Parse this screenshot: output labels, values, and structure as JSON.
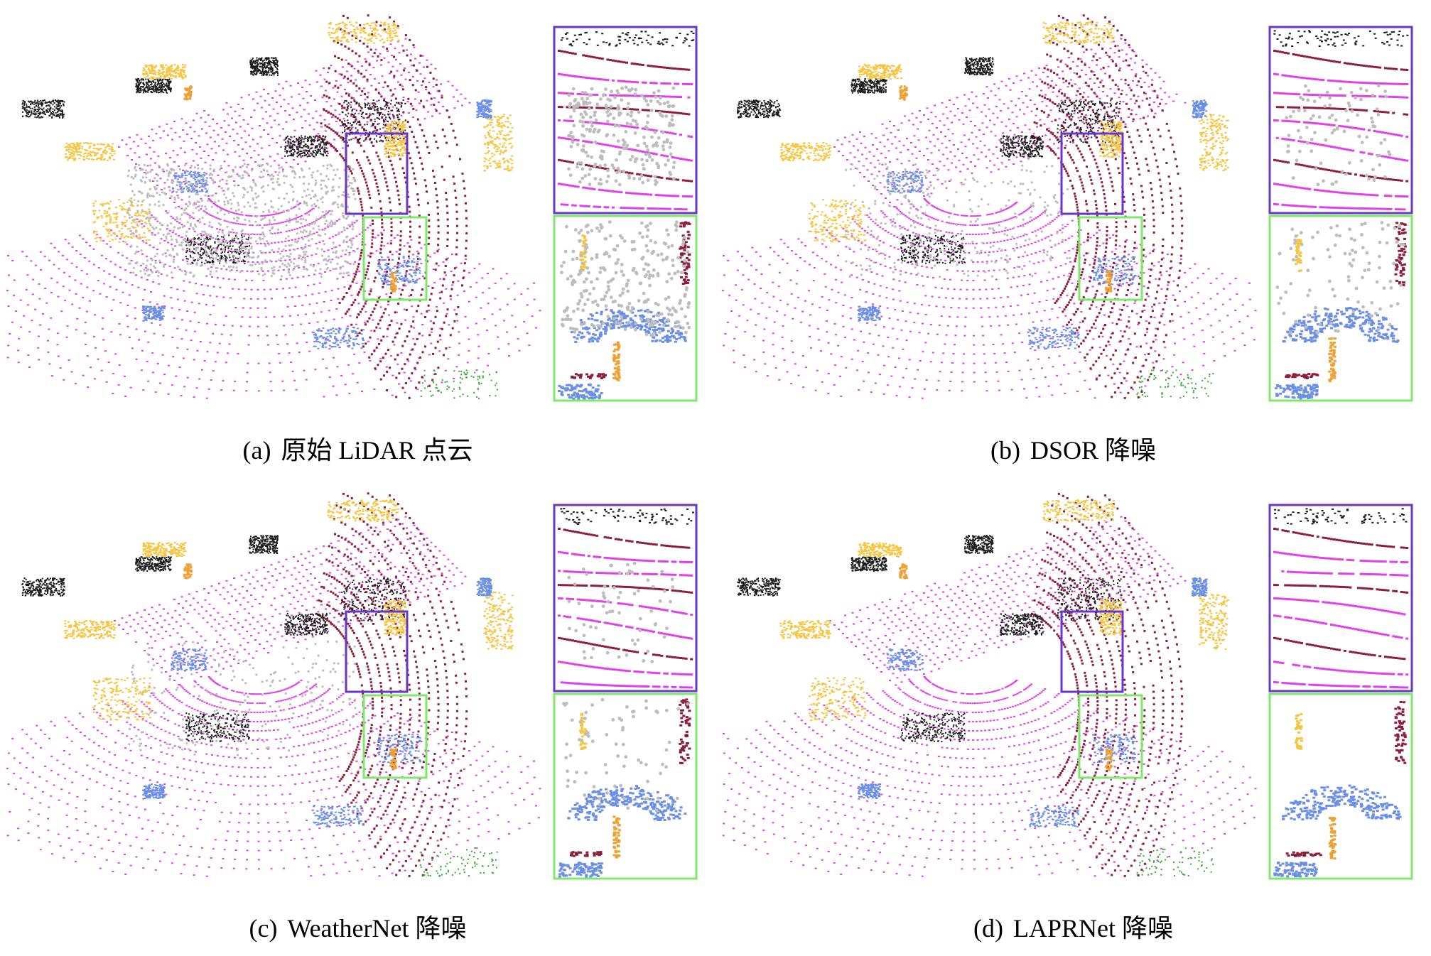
{
  "figure": {
    "panels": [
      {
        "id": "a",
        "label": "(a)",
        "title": "原始 LiDAR 点云",
        "noise": 1.0
      },
      {
        "id": "b",
        "label": "(b)",
        "title": "DSOR 降噪",
        "noise": 0.35
      },
      {
        "id": "c",
        "label": "(c)",
        "title": "WeatherNet 降噪",
        "noise": 0.25
      },
      {
        "id": "d",
        "label": "(d)",
        "title": "LAPRNet 降噪",
        "noise": 0.0
      }
    ],
    "colors": {
      "road": "#e040e8",
      "sidewalk": "#8b1f3c",
      "building": "#1a1a1a",
      "vehicle": "#f5c542",
      "car": "#6b8fe6",
      "person": "#f0a030",
      "vegetation": "#3aa53a",
      "noise": "#bdbdbd",
      "zoom_box_top": "#6a35c8",
      "zoom_box_bottom": "#7ee86a"
    }
  }
}
